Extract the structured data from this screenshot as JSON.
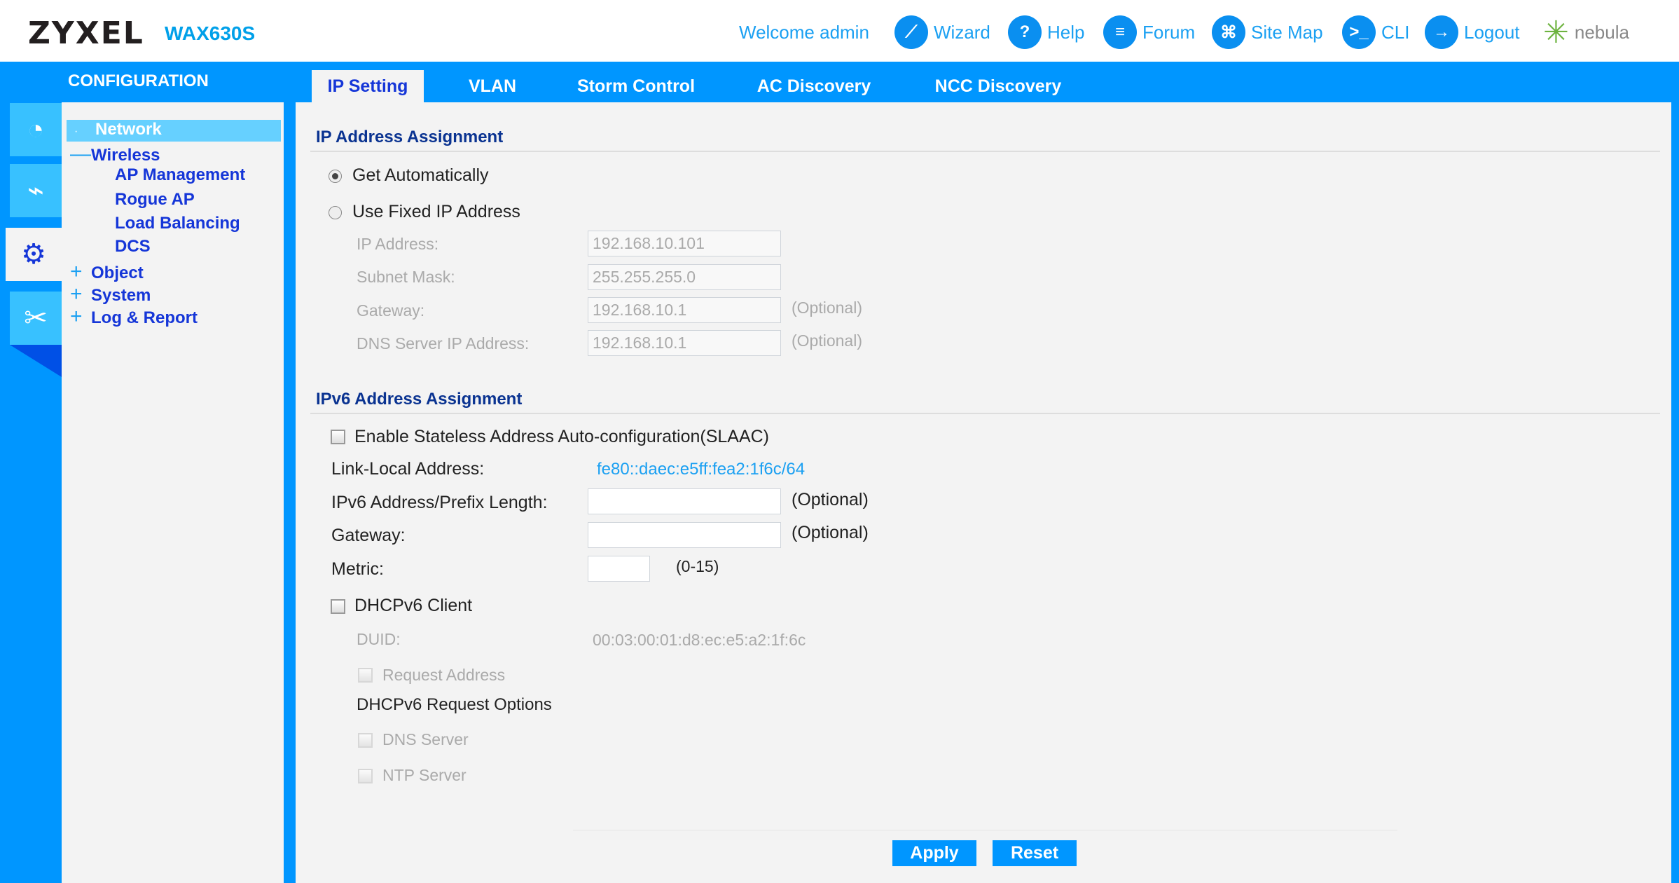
{
  "header": {
    "brand": "ZYXEL",
    "model": "WAX630S",
    "welcome": "Welcome admin",
    "links": [
      {
        "label": "Wizard",
        "icon": "wizard-icon"
      },
      {
        "label": "Help",
        "icon": "help-icon"
      },
      {
        "label": "Forum",
        "icon": "forum-icon"
      },
      {
        "label": "Site Map",
        "icon": "sitemap-icon"
      },
      {
        "label": "CLI",
        "icon": "cli-icon"
      },
      {
        "label": "Logout",
        "icon": "logout-icon"
      }
    ],
    "nebula": "nebula"
  },
  "sidebar": {
    "title": "CONFIGURATION",
    "tree": {
      "network": "Network",
      "wireless": "Wireless",
      "ap_management": "AP Management",
      "rogue_ap": "Rogue AP",
      "load_balancing": "Load Balancing",
      "dcs": "DCS",
      "object": "Object",
      "system": "System",
      "log_report": "Log & Report"
    }
  },
  "tabs": [
    "IP Setting",
    "VLAN",
    "Storm Control",
    "AC Discovery",
    "NCC Discovery"
  ],
  "active_tab": "IP Setting",
  "ipv4": {
    "heading": "IP Address Assignment",
    "get_auto": "Get Automatically",
    "use_fixed": "Use Fixed IP Address",
    "selected": "Get Automatically",
    "ip_label": "IP Address:",
    "ip_value": "192.168.10.101",
    "mask_label": "Subnet Mask:",
    "mask_value": "255.255.255.0",
    "gw_label": "Gateway:",
    "gw_value": "192.168.10.1",
    "dns_label": "DNS Server IP Address:",
    "dns_value": "192.168.10.1",
    "optional": "(Optional)"
  },
  "ipv6": {
    "heading": "IPv6 Address Assignment",
    "slaac": "Enable Stateless Address Auto-configuration(SLAAC)",
    "link_local_label": "Link-Local Address:",
    "link_local_value": "fe80::daec:e5ff:fea2:1f6c/64",
    "prefix_label": "IPv6 Address/Prefix Length:",
    "gw_label": "Gateway:",
    "metric_label": "Metric:",
    "metric_range": "(0-15)",
    "optional": "(Optional)",
    "dhcp_client": "DHCPv6 Client",
    "duid_label": "DUID:",
    "duid_value": "00:03:00:01:d8:ec:e5:a2:1f:6c",
    "request_address": "Request Address",
    "request_options": "DHCPv6 Request Options",
    "dns_server": "DNS Server",
    "ntp_server": "NTP Server"
  },
  "buttons": {
    "apply": "Apply",
    "reset": "Reset"
  },
  "colors": {
    "accent": "#0096ff",
    "nav_text": "#1536d8",
    "link": "#1ba0f2"
  }
}
